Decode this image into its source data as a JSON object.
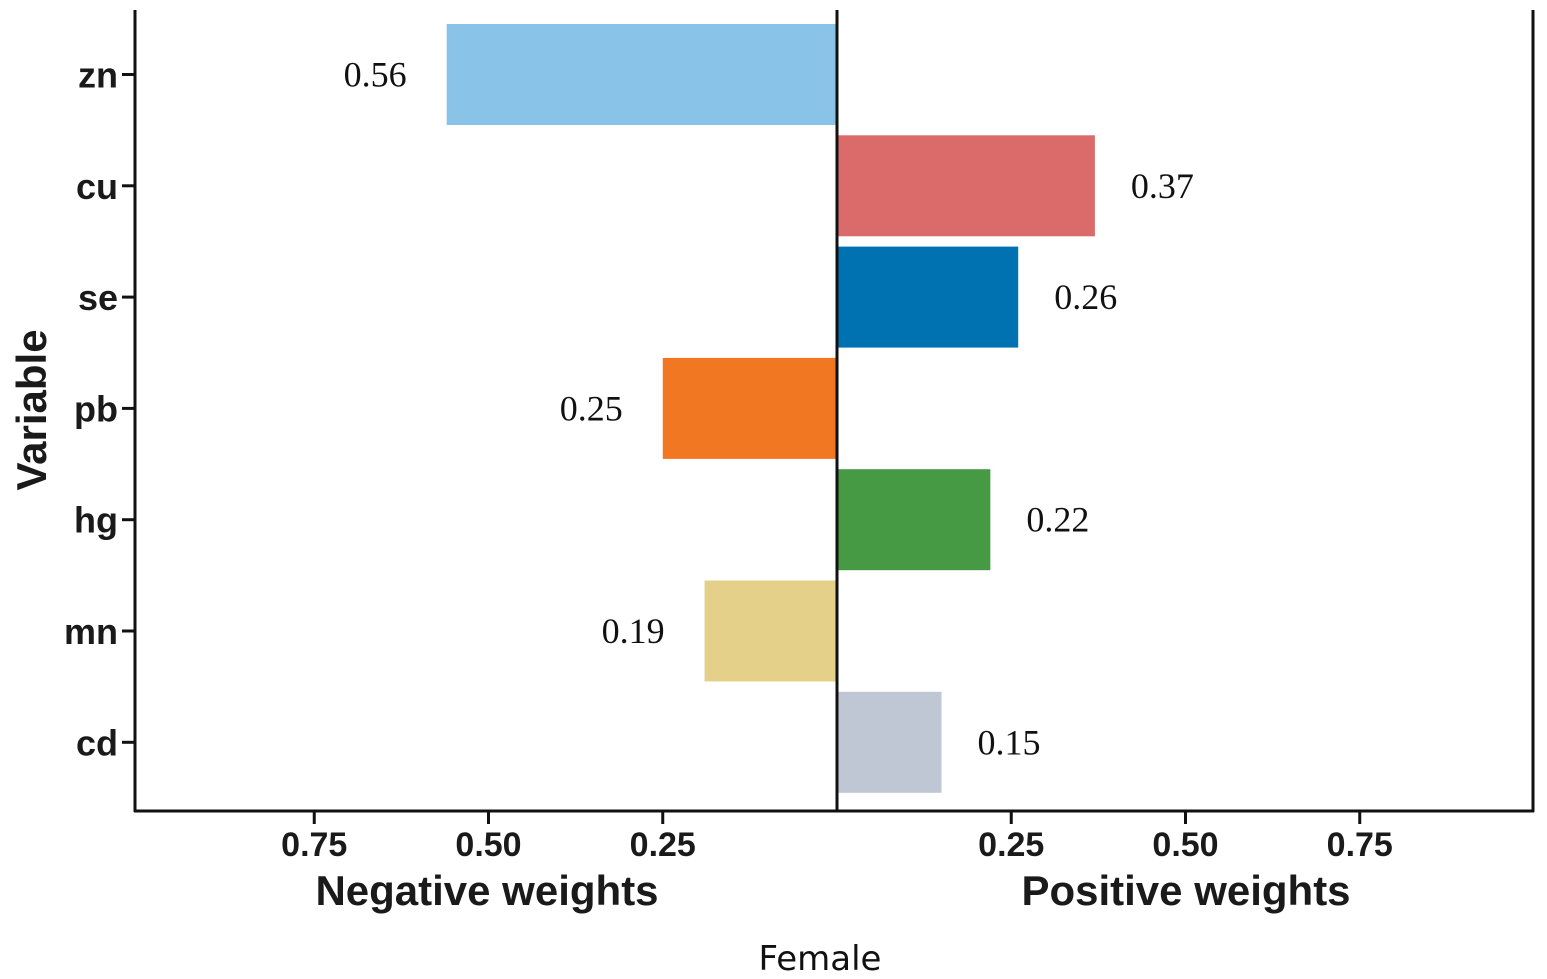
{
  "chart_data": {
    "type": "bar",
    "orientation": "horizontal-diverging",
    "caption": "Female",
    "ylabel": "Variable",
    "left_axis_label": "Negative weights",
    "right_axis_label": "Positive weights",
    "xlim": [
      -1,
      1
    ],
    "left_ticks": [
      {
        "value": 0.75,
        "label": "0.75"
      },
      {
        "value": 0.5,
        "label": "0.50"
      },
      {
        "value": 0.25,
        "label": "0.25"
      }
    ],
    "right_ticks": [
      {
        "value": 0.25,
        "label": "0.25"
      },
      {
        "value": 0.5,
        "label": "0.50"
      },
      {
        "value": 0.75,
        "label": "0.75"
      }
    ],
    "bars": [
      {
        "variable": "zn",
        "value": 0.56,
        "label": "0.56",
        "direction": "negative",
        "color": "#89c3e8"
      },
      {
        "variable": "cu",
        "value": 0.37,
        "label": "0.37",
        "direction": "positive",
        "color": "#db6a6a"
      },
      {
        "variable": "se",
        "value": 0.26,
        "label": "0.26",
        "direction": "positive",
        "color": "#0072b2"
      },
      {
        "variable": "pb",
        "value": 0.25,
        "label": "0.25",
        "direction": "negative",
        "color": "#f27722"
      },
      {
        "variable": "hg",
        "value": 0.22,
        "label": "0.22",
        "direction": "positive",
        "color": "#479a44"
      },
      {
        "variable": "mn",
        "value": 0.19,
        "label": "0.19",
        "direction": "negative",
        "color": "#e4d088"
      },
      {
        "variable": "cd",
        "value": 0.15,
        "label": "0.15",
        "direction": "positive",
        "color": "#bfc6d4"
      }
    ]
  }
}
